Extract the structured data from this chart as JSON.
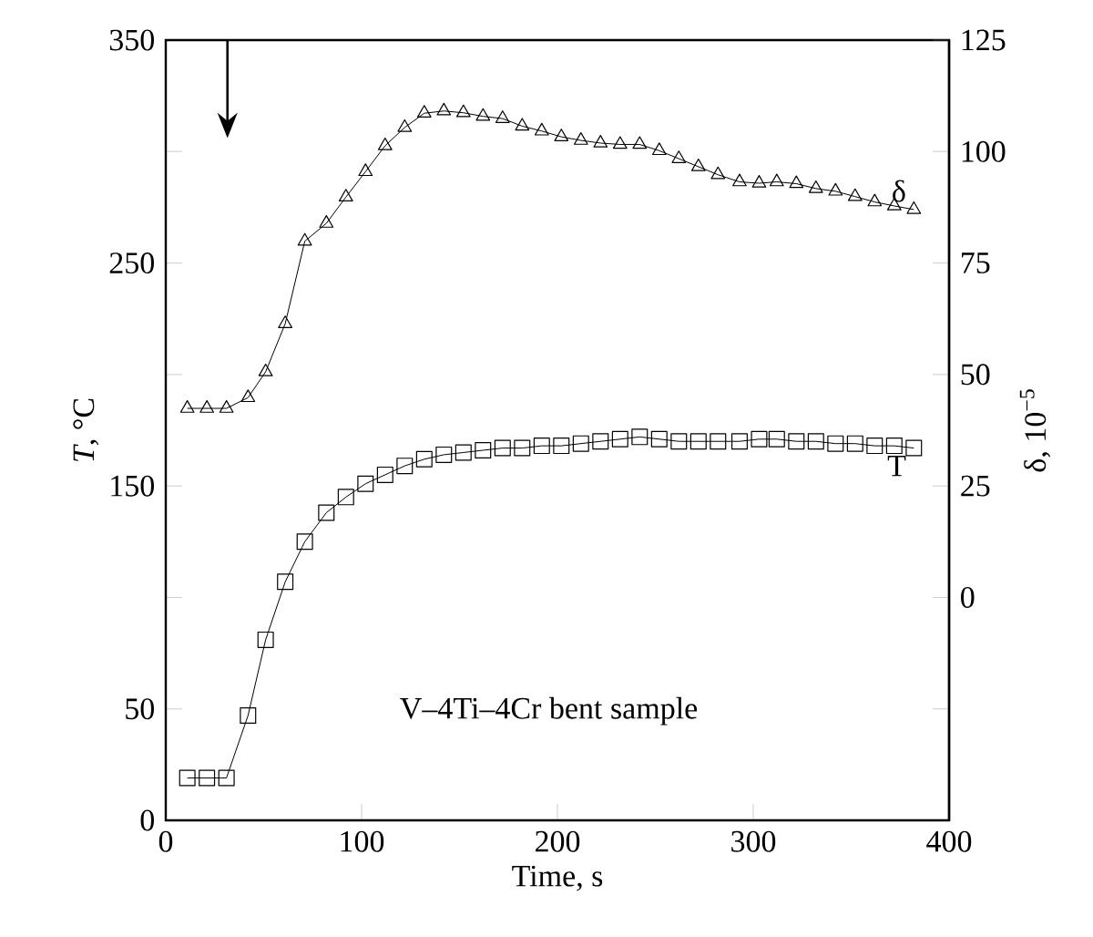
{
  "chart_data": {
    "type": "line",
    "xlabel": "Time, s",
    "ylabel": "*T*, °C",
    "y2label": "δ, 10$^{−5}$",
    "annotations": [
      "V–4Ti–4Cr bent sample"
    ],
    "xlim": [
      0,
      400
    ],
    "xticks": [
      0,
      100,
      200,
      300,
      400
    ],
    "ylim": [
      0,
      350
    ],
    "yticks": [
      0,
      50,
      {
        "value": 100,
        "label": null
      },
      150,
      {
        "value": 200,
        "label": null
      },
      250,
      {
        "value": 300,
        "label": null
      },
      350
    ],
    "y2lim": [
      -50,
      125
    ],
    "y2ticks": [
      {
        "value": -25,
        "label": null
      },
      0,
      25,
      50,
      75,
      100,
      125
    ],
    "line_style": "solid",
    "grid": false,
    "series": [
      {
        "name": "δ",
        "color": "#000000",
        "axis": "y2",
        "marker": "triangle",
        "x": [
          11,
          21,
          31,
          42,
          51,
          61,
          71,
          82,
          92,
          102,
          112,
          122,
          132,
          142,
          152,
          162,
          172,
          182,
          192,
          202,
          212,
          222,
          232,
          242,
          252,
          262,
          272,
          282,
          293,
          303,
          312,
          322,
          332,
          342,
          352,
          362,
          372,
          382
        ],
        "values": [
          42.4,
          42.4,
          42.4,
          44.8,
          50.6,
          61.4,
          79.9,
          83.9,
          89.8,
          95.5,
          101.3,
          105.4,
          108.6,
          109.1,
          108.7,
          107.9,
          107.4,
          105.7,
          104.6,
          103.3,
          102.5,
          101.9,
          101.6,
          101.6,
          100.2,
          98.4,
          96.6,
          94.8,
          93.2,
          92.9,
          93.2,
          92.8,
          91.7,
          91.1,
          89.9,
          88.7,
          87.8,
          87.0
        ]
      },
      {
        "name": "T",
        "color": "#000000",
        "marker": "square",
        "x": [
          11,
          21,
          31,
          42,
          51,
          61,
          71,
          82,
          92,
          102,
          112,
          122,
          132,
          142,
          152,
          162,
          172,
          182,
          192,
          202,
          212,
          222,
          232,
          242,
          252,
          262,
          272,
          282,
          293,
          303,
          312,
          322,
          332,
          342,
          352,
          362,
          372,
          382
        ],
        "values": [
          19,
          19,
          19,
          47,
          81,
          107,
          125,
          138,
          145,
          151,
          155,
          159,
          162,
          164,
          165,
          166,
          167,
          167,
          168,
          168,
          169,
          170,
          171,
          172,
          171,
          170,
          170,
          170,
          170,
          171,
          171,
          170,
          170,
          169,
          169,
          168,
          168,
          167
        ]
      }
    ]
  }
}
